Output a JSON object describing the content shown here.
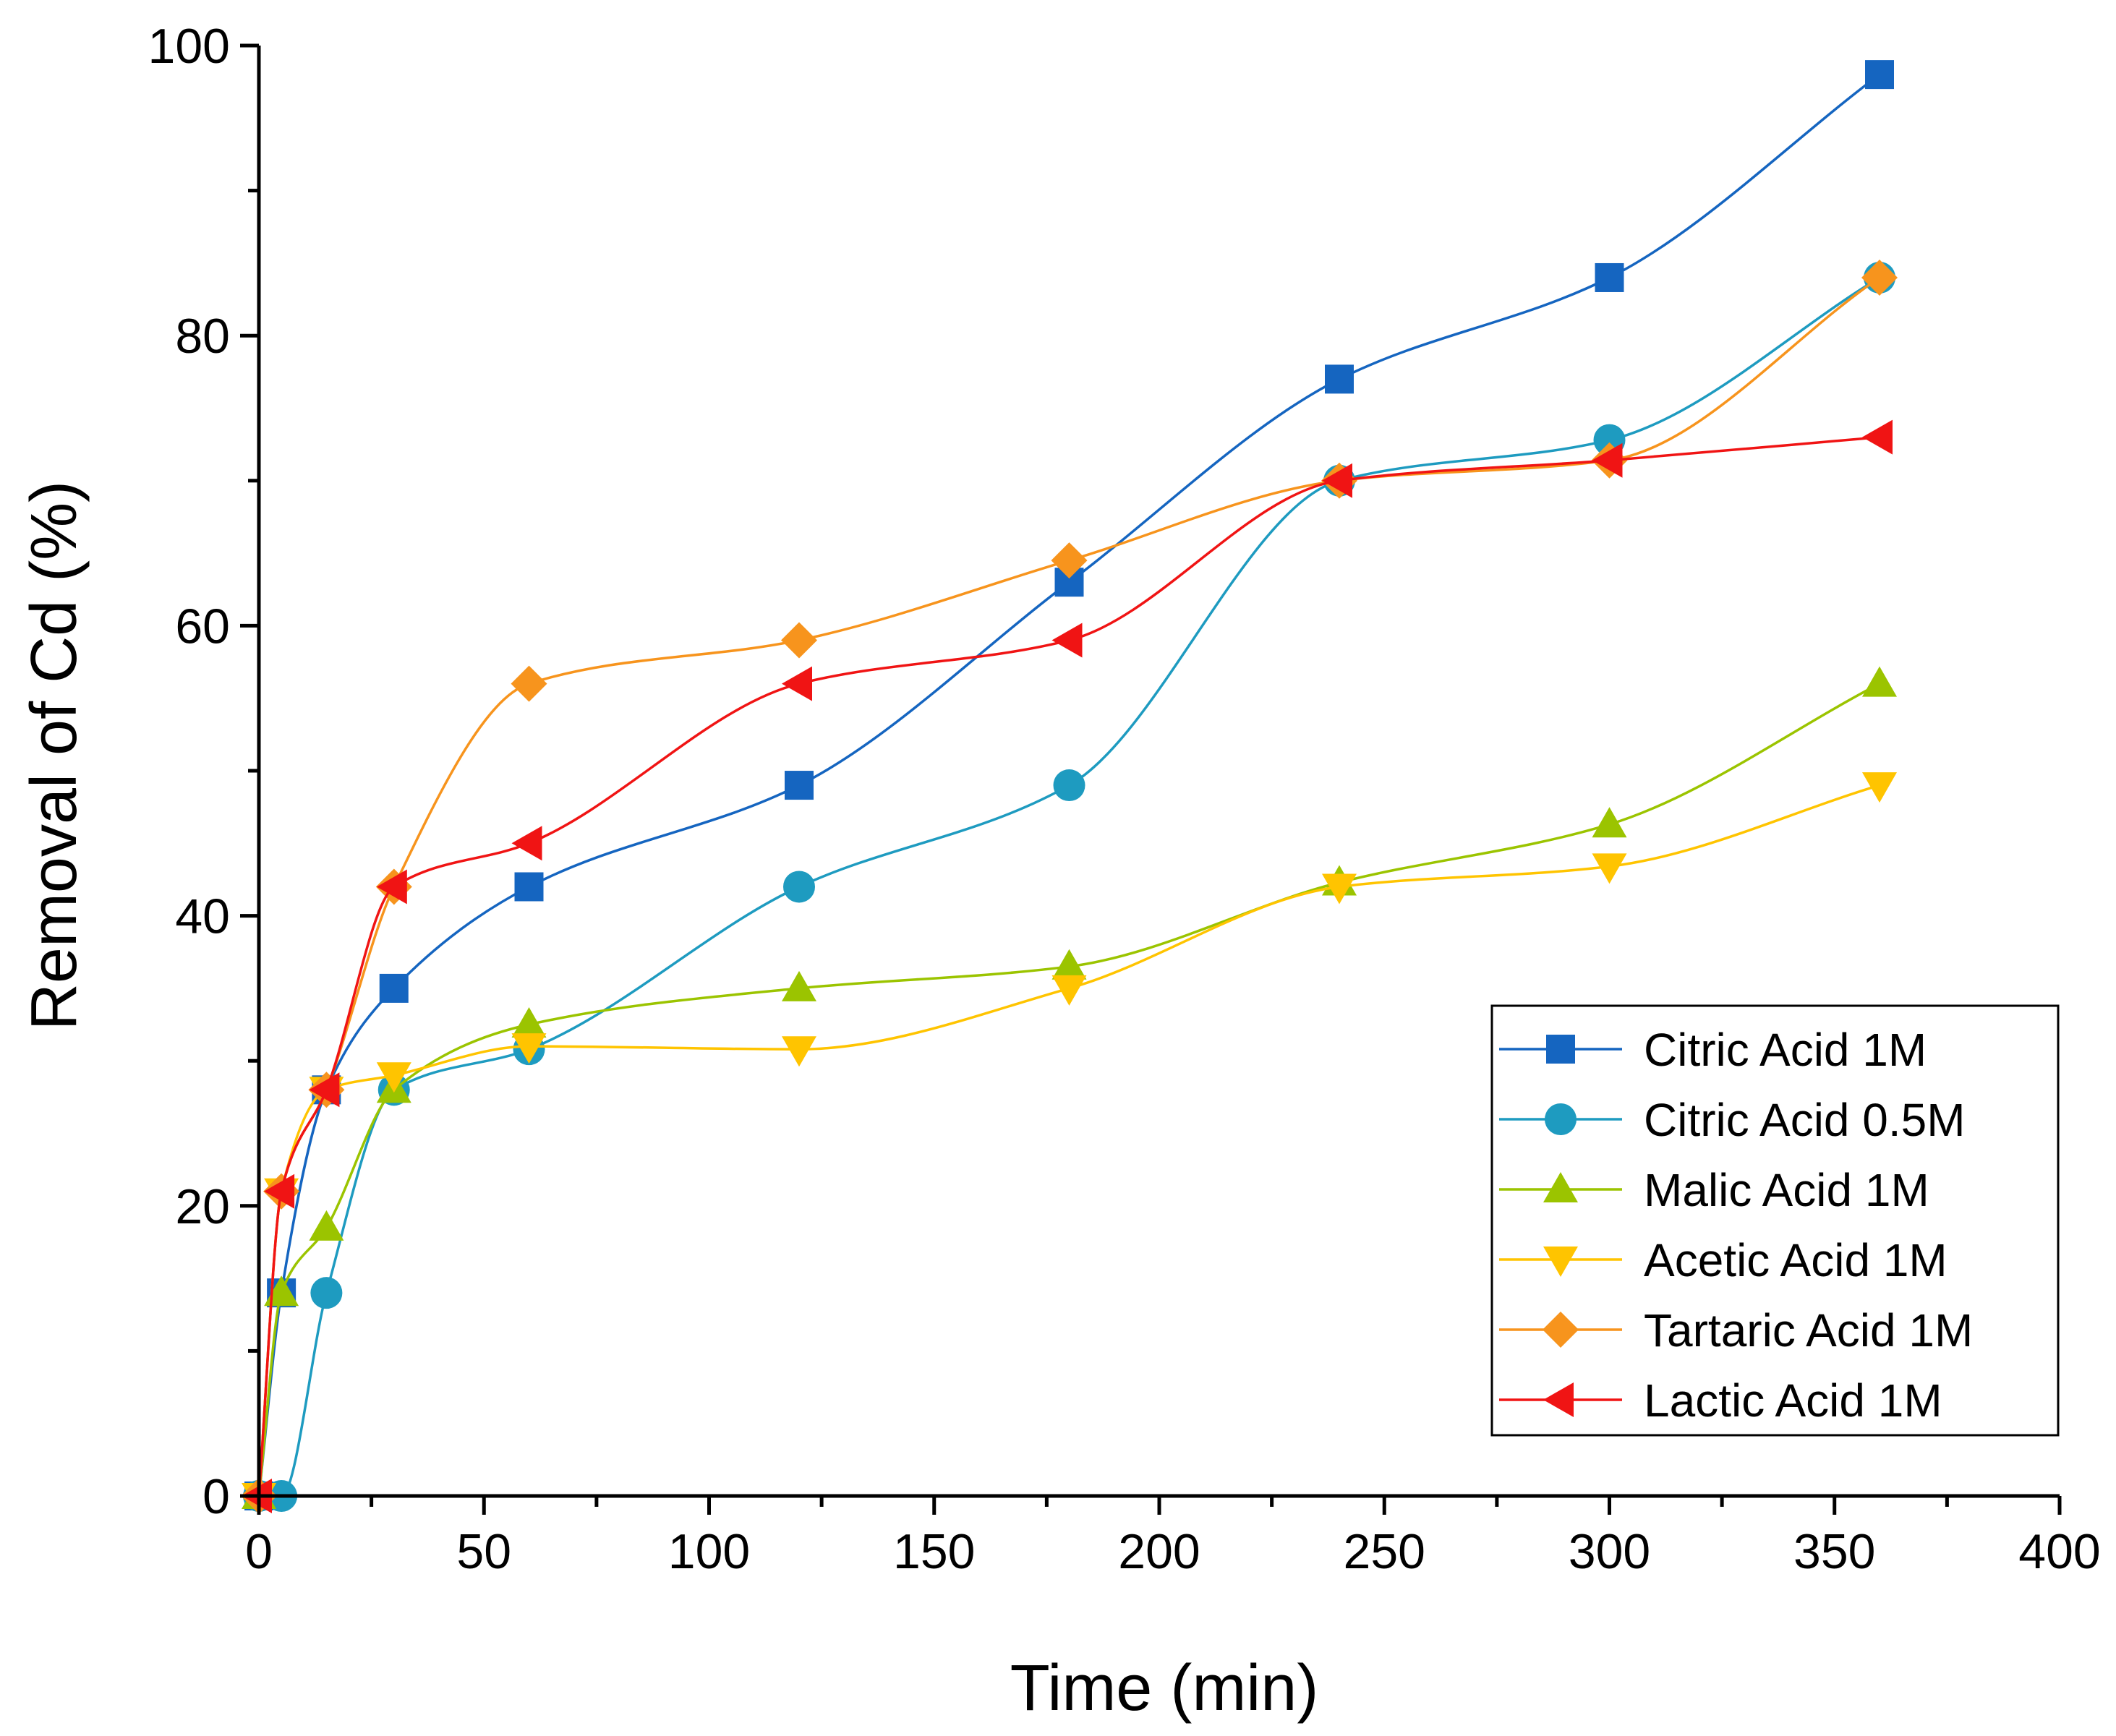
{
  "chart_data": {
    "type": "line",
    "title": "",
    "xlabel": "Time (min)",
    "ylabel": "Removal of Cd (%)",
    "xlim": [
      0,
      400
    ],
    "ylim": [
      0,
      100
    ],
    "xticks": [
      "0",
      "50",
      "100",
      "150",
      "200",
      "250",
      "300",
      "350",
      "400"
    ],
    "yticks": [
      "0",
      "20",
      "40",
      "60",
      "80",
      "100"
    ],
    "grid": false,
    "legend_position": "bottom-right",
    "x": [
      0,
      5,
      15,
      30,
      60,
      120,
      180,
      240,
      300,
      360
    ],
    "series": [
      {
        "name": "Citric Acid 1M",
        "color": "#1565C0",
        "marker": "square",
        "values": [
          0,
          14,
          28,
          35,
          42,
          49,
          63,
          77,
          84,
          98
        ]
      },
      {
        "name": "Citric Acid 0.5M",
        "color": "#1E9BC0",
        "marker": "circle",
        "values": [
          0,
          0,
          14,
          28,
          30.8,
          42,
          49,
          70,
          72.8,
          84
        ]
      },
      {
        "name": "Malic Acid 1M",
        "color": "#9BC400",
        "marker": "triangle-up",
        "values": [
          0,
          14,
          18.5,
          28,
          32.5,
          35,
          36.5,
          42.3,
          46.3,
          56
        ]
      },
      {
        "name": "Acetic Acid 1M",
        "color": "#FFC400",
        "marker": "triangle-down",
        "values": [
          0,
          21,
          28,
          29,
          31,
          30.8,
          35,
          42,
          43.4,
          49
        ]
      },
      {
        "name": "Tartaric Acid 1M",
        "color": "#F7941D",
        "marker": "diamond",
        "values": [
          0,
          21,
          28,
          42,
          56,
          59,
          64.5,
          70,
          71.4,
          84
        ]
      },
      {
        "name": "Lactic Acid 1M",
        "color": "#F01414",
        "marker": "triangle-left",
        "values": [
          0,
          21,
          28,
          42,
          45,
          56,
          59,
          70,
          71.4,
          73
        ]
      }
    ]
  }
}
